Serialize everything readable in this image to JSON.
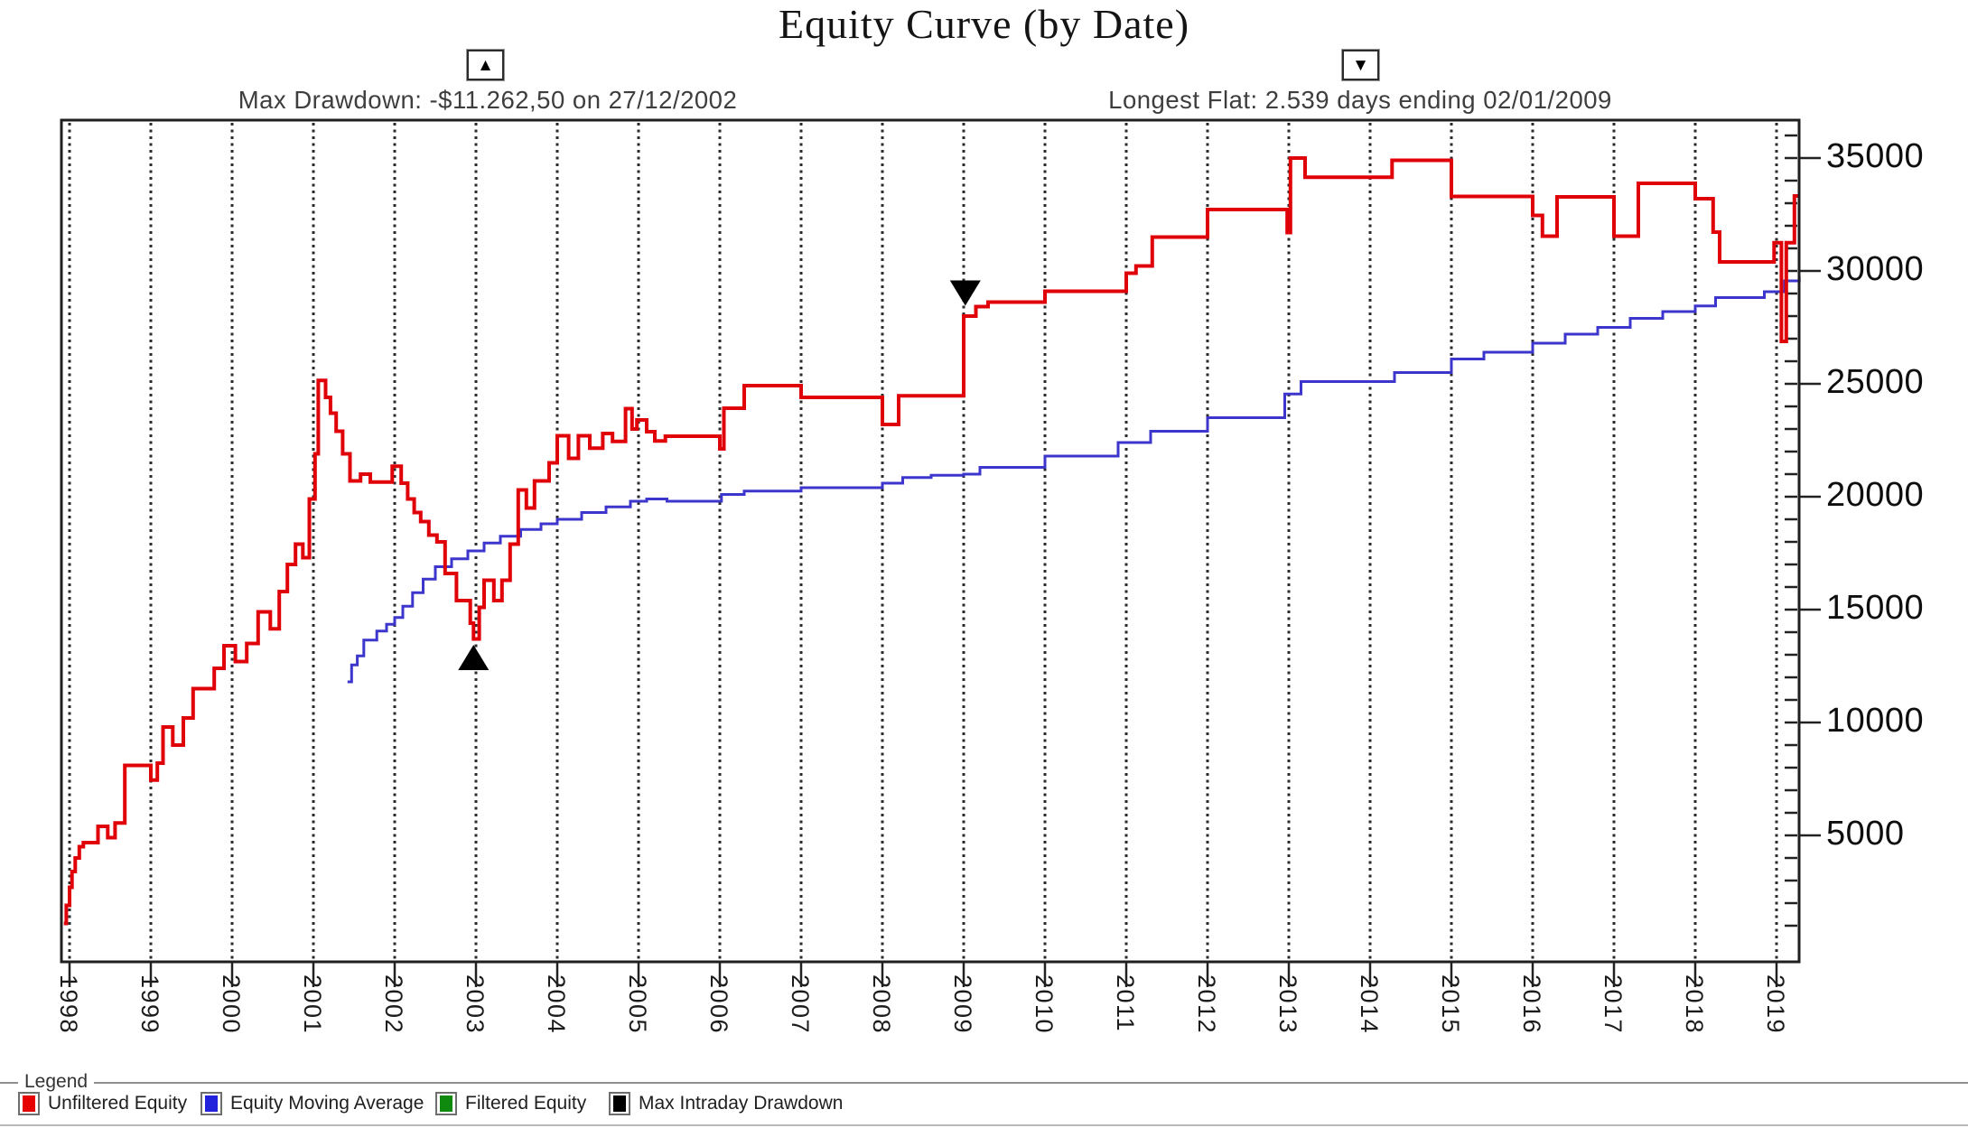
{
  "title": "Equity Curve (by Date)",
  "annotations": {
    "max_drawdown": {
      "icon": "▲",
      "text": "Max Drawdown: -$11.262,50 on 27/12/2002"
    },
    "longest_flat": {
      "icon": "▼",
      "text": "Longest Flat: 2.539 days ending 02/01/2009"
    }
  },
  "legend": {
    "box_label": "Legend",
    "items": [
      {
        "label": "Unfiltered Equity",
        "color": "#e60000"
      },
      {
        "label": "Equity Moving Average",
        "color": "#2222dd"
      },
      {
        "label": "Filtered Equity",
        "color": "#0f8a0f"
      },
      {
        "label": "Max Intraday Drawdown",
        "color": "#000000"
      }
    ]
  },
  "chart_data": {
    "type": "line",
    "title": "Equity Curve (by Date)",
    "xlabel": "",
    "ylabel": "",
    "x_axis": {
      "ticks": [
        "1998",
        "1999",
        "2000",
        "2001",
        "2002",
        "2003",
        "2004",
        "2005",
        "2006",
        "2007",
        "2008",
        "2009",
        "2010",
        "2011",
        "2012",
        "2013",
        "2014",
        "2015",
        "2016",
        "2017",
        "2018",
        "2019"
      ],
      "gridlines": "dotted-vertical",
      "range": [
        1997.9,
        2019.28
      ]
    },
    "y_axis": {
      "side": "right",
      "major_ticks": [
        5000,
        10000,
        15000,
        20000,
        25000,
        30000,
        35000
      ],
      "minor_tick_step": 1000,
      "range": [
        -600,
        36700
      ]
    },
    "series": [
      {
        "name": "Unfiltered Equity",
        "color": "#e00008",
        "interpolation": "step",
        "stroke_width": 4,
        "points": [
          [
            1997.93,
            1100
          ],
          [
            1997.96,
            1900
          ],
          [
            1998.0,
            2700
          ],
          [
            1998.03,
            3400
          ],
          [
            1998.07,
            4000
          ],
          [
            1998.12,
            4500
          ],
          [
            1998.17,
            4680
          ],
          [
            1998.35,
            5400
          ],
          [
            1998.47,
            4900
          ],
          [
            1998.56,
            5550
          ],
          [
            1998.68,
            8100
          ],
          [
            1999.0,
            7450
          ],
          [
            1999.08,
            8200
          ],
          [
            1999.15,
            9800
          ],
          [
            1999.27,
            9000
          ],
          [
            1999.4,
            10200
          ],
          [
            1999.52,
            11500
          ],
          [
            1999.78,
            12400
          ],
          [
            1999.9,
            13400
          ],
          [
            2000.04,
            12700
          ],
          [
            2000.18,
            13500
          ],
          [
            2000.32,
            14900
          ],
          [
            2000.47,
            14150
          ],
          [
            2000.58,
            15800
          ],
          [
            2000.68,
            17000
          ],
          [
            2000.78,
            17900
          ],
          [
            2000.87,
            17300
          ],
          [
            2000.95,
            19900
          ],
          [
            2001.02,
            21900
          ],
          [
            2001.06,
            25150
          ],
          [
            2001.15,
            24400
          ],
          [
            2001.21,
            23700
          ],
          [
            2001.28,
            22900
          ],
          [
            2001.36,
            21900
          ],
          [
            2001.45,
            20700
          ],
          [
            2001.58,
            21000
          ],
          [
            2001.7,
            20650
          ],
          [
            2001.97,
            21350
          ],
          [
            2002.08,
            20600
          ],
          [
            2002.16,
            19900
          ],
          [
            2002.24,
            19300
          ],
          [
            2002.32,
            18900
          ],
          [
            2002.42,
            18300
          ],
          [
            2002.52,
            18000
          ],
          [
            2002.62,
            16600
          ],
          [
            2002.76,
            15400
          ],
          [
            2002.93,
            14400
          ],
          [
            2002.97,
            13700
          ],
          [
            2003.04,
            15100
          ],
          [
            2003.1,
            16300
          ],
          [
            2003.22,
            15400
          ],
          [
            2003.32,
            16300
          ],
          [
            2003.42,
            17900
          ],
          [
            2003.52,
            20300
          ],
          [
            2003.62,
            19500
          ],
          [
            2003.72,
            20700
          ],
          [
            2003.9,
            21500
          ],
          [
            2004.0,
            22700
          ],
          [
            2004.14,
            21700
          ],
          [
            2004.26,
            22700
          ],
          [
            2004.4,
            22150
          ],
          [
            2004.56,
            22800
          ],
          [
            2004.68,
            22450
          ],
          [
            2004.84,
            23900
          ],
          [
            2004.92,
            23000
          ],
          [
            2004.98,
            23400
          ],
          [
            2005.1,
            22880
          ],
          [
            2005.2,
            22470
          ],
          [
            2005.33,
            22680
          ],
          [
            2006.0,
            22120
          ],
          [
            2006.05,
            23920
          ],
          [
            2006.3,
            24920
          ],
          [
            2007.0,
            24400
          ],
          [
            2008.0,
            23200
          ],
          [
            2008.2,
            24470
          ],
          [
            2009.0,
            28000
          ],
          [
            2009.15,
            28420
          ],
          [
            2009.3,
            28620
          ],
          [
            2010.0,
            29100
          ],
          [
            2011.0,
            29900
          ],
          [
            2011.12,
            30220
          ],
          [
            2011.32,
            31500
          ],
          [
            2012.0,
            32720
          ],
          [
            2012.98,
            31700
          ],
          [
            2013.02,
            35000
          ],
          [
            2013.2,
            34150
          ],
          [
            2014.27,
            34900
          ],
          [
            2015.0,
            33300
          ],
          [
            2016.0,
            32460
          ],
          [
            2016.12,
            31540
          ],
          [
            2016.3,
            33280
          ],
          [
            2017.0,
            31540
          ],
          [
            2017.3,
            33880
          ],
          [
            2018.0,
            33200
          ],
          [
            2018.22,
            31720
          ],
          [
            2018.3,
            30400
          ],
          [
            2018.97,
            31250
          ],
          [
            2019.06,
            26880
          ],
          [
            2019.12,
            31250
          ],
          [
            2019.22,
            33320
          ]
        ]
      },
      {
        "name": "Equity Moving Average",
        "color": "#3c36cc",
        "interpolation": "step",
        "stroke_width": 3,
        "points": [
          [
            2001.42,
            11800
          ],
          [
            2001.47,
            12550
          ],
          [
            2001.54,
            12950
          ],
          [
            2001.62,
            13650
          ],
          [
            2001.78,
            14050
          ],
          [
            2001.9,
            14350
          ],
          [
            2002.0,
            14650
          ],
          [
            2002.1,
            15150
          ],
          [
            2002.22,
            15750
          ],
          [
            2002.35,
            16350
          ],
          [
            2002.5,
            16900
          ],
          [
            2002.7,
            17250
          ],
          [
            2002.9,
            17600
          ],
          [
            2003.1,
            17950
          ],
          [
            2003.3,
            18250
          ],
          [
            2003.55,
            18550
          ],
          [
            2003.8,
            18800
          ],
          [
            2004.0,
            19000
          ],
          [
            2004.3,
            19300
          ],
          [
            2004.6,
            19550
          ],
          [
            2004.9,
            19800
          ],
          [
            2005.1,
            19900
          ],
          [
            2005.35,
            19800
          ],
          [
            2006.02,
            20100
          ],
          [
            2006.3,
            20250
          ],
          [
            2007.0,
            20400
          ],
          [
            2008.0,
            20600
          ],
          [
            2008.25,
            20850
          ],
          [
            2008.6,
            20950
          ],
          [
            2009.0,
            21000
          ],
          [
            2009.2,
            21300
          ],
          [
            2010.0,
            21800
          ],
          [
            2010.9,
            22400
          ],
          [
            2011.3,
            22900
          ],
          [
            2012.0,
            23500
          ],
          [
            2012.95,
            24550
          ],
          [
            2013.15,
            25100
          ],
          [
            2014.3,
            25500
          ],
          [
            2015.0,
            26100
          ],
          [
            2015.4,
            26400
          ],
          [
            2016.0,
            26800
          ],
          [
            2016.4,
            27200
          ],
          [
            2016.8,
            27500
          ],
          [
            2017.2,
            27900
          ],
          [
            2017.6,
            28200
          ],
          [
            2018.0,
            28450
          ],
          [
            2018.25,
            28820
          ],
          [
            2018.85,
            29080
          ],
          [
            2019.1,
            29560
          ],
          [
            2019.28,
            29700
          ]
        ]
      },
      {
        "name": "Filtered Equity",
        "color": "#0f8a0f",
        "interpolation": "step",
        "stroke_width": 3,
        "points": []
      },
      {
        "name": "Max Intraday Drawdown",
        "color": "#000000",
        "markers": [
          {
            "x": 2002.97,
            "y": 12800,
            "shape": "triangle-up"
          },
          {
            "x": 2009.02,
            "y": 29100,
            "shape": "triangle-down"
          }
        ]
      }
    ]
  }
}
